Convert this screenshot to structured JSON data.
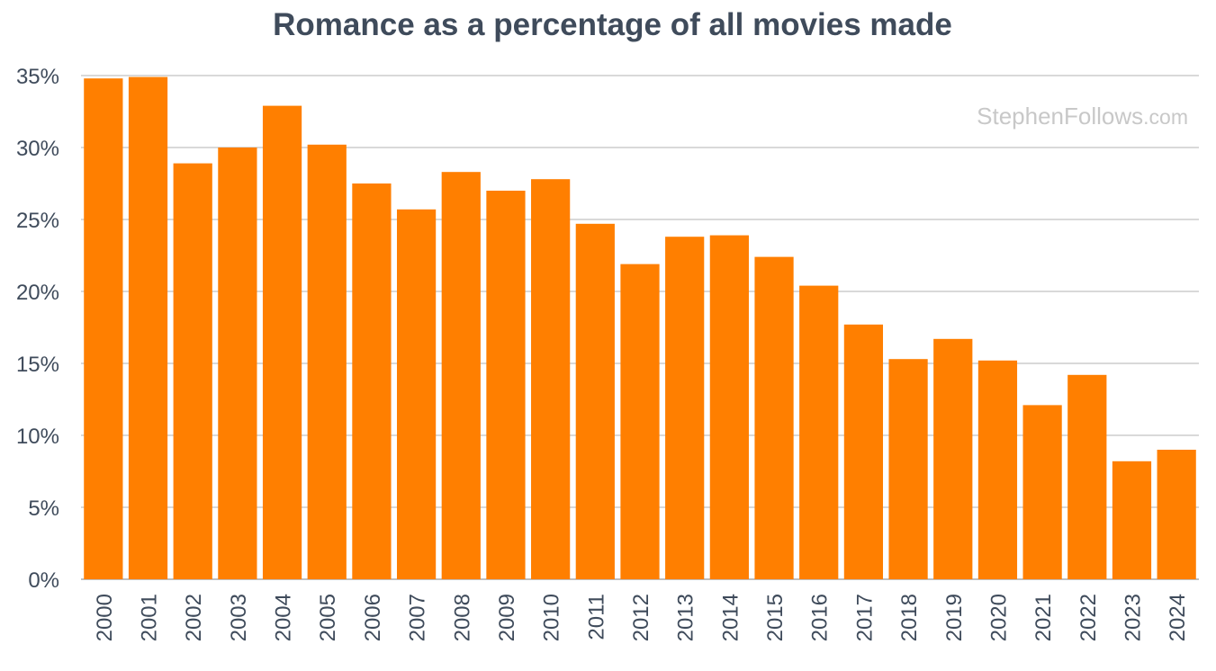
{
  "chart_data": {
    "type": "bar",
    "title": "Romance as a percentage of all movies made",
    "xlabel": "",
    "ylabel": "",
    "categories": [
      "2000",
      "2001",
      "2002",
      "2003",
      "2004",
      "2005",
      "2006",
      "2007",
      "2008",
      "2009",
      "2010",
      "2011",
      "2012",
      "2013",
      "2014",
      "2015",
      "2016",
      "2017",
      "2018",
      "2019",
      "2020",
      "2021",
      "2022",
      "2023",
      "2024"
    ],
    "values": [
      34.8,
      34.9,
      28.9,
      30.0,
      32.9,
      30.2,
      27.5,
      25.7,
      28.3,
      27.0,
      27.8,
      24.7,
      21.9,
      23.8,
      23.9,
      22.4,
      20.4,
      17.7,
      15.3,
      16.7,
      15.2,
      12.1,
      14.2,
      8.2,
      9.0
    ],
    "ylim": [
      0,
      35
    ],
    "yticks": [
      "0%",
      "5%",
      "10%",
      "15%",
      "20%",
      "25%",
      "30%",
      "35%"
    ],
    "grid": true,
    "bar_color": "#ff7f00",
    "gridline_color": "#d9d9d9",
    "watermark": {
      "main": "StephenFollows",
      "suffix": ".com"
    }
  }
}
